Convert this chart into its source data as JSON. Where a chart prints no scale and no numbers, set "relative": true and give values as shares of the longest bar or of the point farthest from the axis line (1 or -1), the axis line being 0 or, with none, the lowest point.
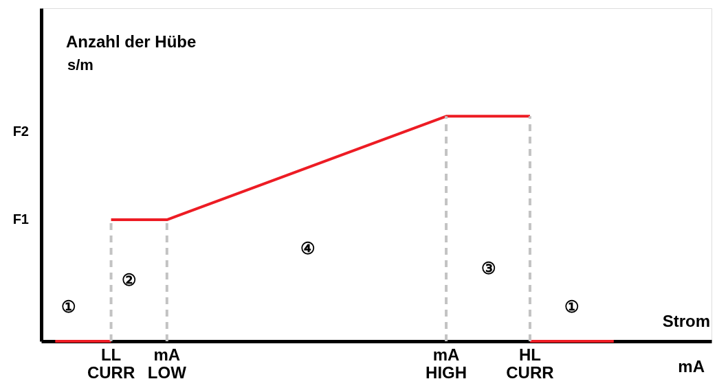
{
  "chart_data": {
    "type": "line",
    "relative": true,
    "ylabel": "Anzahl der Hübe\ns/m",
    "xlabel": "Strom\nmA",
    "categories": [
      null,
      null,
      "LL\nCURR",
      null,
      "mA\nLOW",
      null,
      null,
      null,
      null,
      null,
      null,
      null,
      null,
      null,
      "mA\nHIGH",
      null,
      null,
      "HL\nCURR",
      null,
      null,
      null,
      null,
      null,
      null
    ],
    "series": [
      {
        "color": "#ed1c24",
        "values": [
          0,
          null,
          0,
          null,
          null,
          null,
          null,
          null,
          null,
          null,
          null,
          null,
          null,
          null,
          null,
          null,
          null,
          null,
          null,
          null,
          null,
          null,
          null,
          null
        ]
      },
      {
        "color": "#ed1c24",
        "values": [
          null,
          null,
          0.54,
          null,
          0.54,
          null,
          null,
          null,
          null,
          null,
          null,
          null,
          null,
          null,
          1,
          null,
          null,
          1,
          null,
          null,
          null,
          null,
          null,
          null
        ]
      },
      {
        "color": "#ed1c24",
        "values": [
          null,
          null,
          null,
          null,
          null,
          null,
          null,
          null,
          null,
          null,
          null,
          null,
          null,
          null,
          null,
          null,
          null,
          0,
          null,
          null,
          0,
          null,
          null,
          null
        ]
      }
    ],
    "ref_lines": [
      {
        "axis": "x",
        "value": "LL\nCURR",
        "color": "#c3c3c3",
        "line_style": "dashed"
      },
      {
        "axis": "x",
        "value": "mA\nLOW",
        "color": "#c3c3c3",
        "line_style": "dashed"
      },
      {
        "axis": "x",
        "value": "mA\nHIGH",
        "color": "#c3c3c3",
        "line_style": "dashed"
      },
      {
        "axis": "x",
        "value": "HL\nCURR",
        "color": "#c3c3c3",
        "line_style": "dashed"
      }
    ],
    "annotations": [
      "F1",
      "F2",
      "①",
      "②",
      "④",
      "③",
      "①"
    ],
    "grid": false,
    "marker": "none",
    "line_style": "solid"
  }
}
